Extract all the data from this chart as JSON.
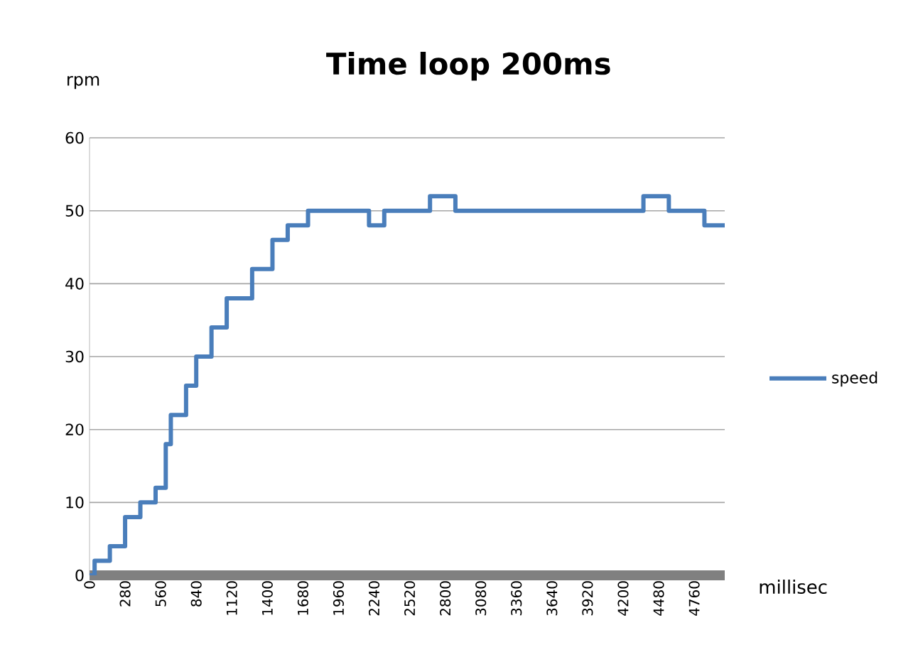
{
  "chart_data": {
    "type": "step",
    "title": "Time loop 200ms",
    "xlabel": "millisec",
    "ylabel": "rpm",
    "x": [
      0,
      40,
      160,
      280,
      400,
      520,
      600,
      640,
      760,
      840,
      960,
      1080,
      1280,
      1440,
      1560,
      1720,
      2200,
      2320,
      2680,
      2880,
      4360,
      4560,
      4840,
      5000
    ],
    "series": [
      {
        "name": "speed",
        "color": "#4a7ebb",
        "values": [
          0,
          2,
          4,
          8,
          10,
          12,
          18,
          22,
          26,
          30,
          34,
          38,
          42,
          46,
          48,
          50,
          48,
          50,
          52,
          50,
          52,
          50,
          48,
          48
        ]
      }
    ],
    "xlim": [
      0,
      5000
    ],
    "xticks": [
      0,
      280,
      560,
      840,
      1120,
      1400,
      1680,
      1960,
      2240,
      2520,
      2800,
      3080,
      3360,
      3640,
      3920,
      4200,
      4480,
      4760
    ],
    "ylim": [
      0,
      60
    ],
    "yticks": [
      0,
      10,
      20,
      30,
      40,
      50,
      60
    ],
    "grid": "y",
    "legend": "right",
    "marker": "none",
    "line_style": "solid"
  }
}
